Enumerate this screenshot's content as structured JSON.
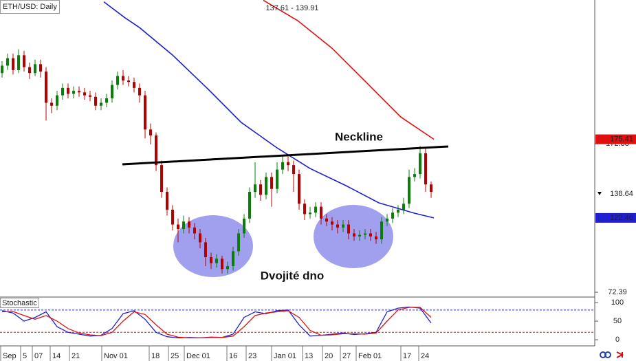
{
  "chart_data": [
    {
      "type": "candlestick",
      "title": "ETH/USD: Daily",
      "subtitle": "137.61 - 139.91",
      "xlim": [
        -0.75,
        215.5
      ],
      "ylim": [
        69.15,
        269.2
      ],
      "yticks": [
        72.39,
        172.33
      ],
      "up_color": "#0b7d0b",
      "down_color": "#b30000",
      "x": [
        0,
        2,
        4,
        6,
        8,
        10,
        12,
        14,
        16,
        18,
        20,
        22,
        24,
        26,
        28,
        30,
        32,
        34,
        36,
        38,
        40,
        42,
        44,
        46,
        48,
        50,
        52,
        54,
        56,
        58,
        60,
        62,
        64,
        66,
        68,
        70,
        72,
        74,
        76,
        78,
        80,
        82,
        84,
        86,
        88,
        90,
        92,
        94,
        96,
        98,
        100,
        102,
        104,
        106,
        108,
        110,
        112,
        114,
        116,
        118,
        120,
        122,
        124,
        126,
        128,
        130,
        132,
        134,
        136,
        138,
        140,
        142,
        144,
        146,
        148,
        150,
        152,
        154,
        156
      ],
      "ohlc": [
        [
          220,
          228,
          217,
          225
        ],
        [
          225,
          233,
          222,
          230
        ],
        [
          230,
          233,
          219,
          222
        ],
        [
          222,
          236,
          220,
          232
        ],
        [
          232,
          235,
          221,
          224
        ],
        [
          224,
          227,
          216,
          220
        ],
        [
          220,
          229,
          218,
          226
        ],
        [
          226,
          229,
          217,
          221
        ],
        [
          221,
          224,
          188,
          200
        ],
        [
          200,
          203,
          193,
          198
        ],
        [
          198,
          208,
          195,
          205
        ],
        [
          205,
          213,
          202,
          210
        ],
        [
          210,
          213,
          203,
          206
        ],
        [
          206,
          211,
          203,
          208
        ],
        [
          208,
          211,
          204,
          207
        ],
        [
          207,
          210,
          202,
          205
        ],
        [
          205,
          208,
          201,
          204
        ],
        [
          204,
          207,
          195,
          198
        ],
        [
          198,
          203,
          195,
          200
        ],
        [
          200,
          206,
          197,
          203
        ],
        [
          203,
          215,
          200,
          212
        ],
        [
          212,
          221,
          209,
          218
        ],
        [
          218,
          222,
          212,
          215
        ],
        [
          215,
          218,
          211,
          214
        ],
        [
          214,
          217,
          207,
          210
        ],
        [
          210,
          213,
          200,
          205
        ],
        [
          205,
          208,
          176,
          182
        ],
        [
          182,
          186,
          172,
          178
        ],
        [
          178,
          180,
          154,
          158
        ],
        [
          158,
          161,
          136,
          140
        ],
        [
          140,
          143,
          124,
          128
        ],
        [
          128,
          131,
          114,
          118
        ],
        [
          118,
          122,
          106,
          115
        ],
        [
          115,
          124,
          112,
          120
        ],
        [
          120,
          123,
          112,
          116
        ],
        [
          116,
          119,
          108,
          112
        ],
        [
          112,
          115,
          102,
          106
        ],
        [
          106,
          109,
          90,
          96
        ],
        [
          96,
          99,
          88,
          92
        ],
        [
          92,
          98,
          89,
          95
        ],
        [
          95,
          97,
          85,
          88
        ],
        [
          88,
          93,
          85,
          90
        ],
        [
          90,
          103,
          87,
          100
        ],
        [
          100,
          115,
          97,
          112
        ],
        [
          112,
          125,
          109,
          122
        ],
        [
          122,
          143,
          119,
          140
        ],
        [
          140,
          160,
          136,
          145
        ],
        [
          145,
          148,
          134,
          138
        ],
        [
          138,
          153,
          135,
          150
        ],
        [
          150,
          153,
          130,
          142
        ],
        [
          142,
          160,
          139,
          155
        ],
        [
          155,
          164,
          152,
          160
        ],
        [
          160,
          164,
          154,
          158
        ],
        [
          158,
          161,
          140,
          152
        ],
        [
          152,
          155,
          128,
          132
        ],
        [
          132,
          135,
          121,
          125
        ],
        [
          125,
          130,
          122,
          126
        ],
        [
          126,
          133,
          123,
          130
        ],
        [
          130,
          133,
          118,
          122
        ],
        [
          122,
          125,
          117,
          120
        ],
        [
          120,
          123,
          114,
          118
        ],
        [
          118,
          121,
          112,
          116
        ],
        [
          116,
          121,
          113,
          118
        ],
        [
          118,
          121,
          108,
          112
        ],
        [
          112,
          115,
          107,
          110
        ],
        [
          110,
          114,
          107,
          111
        ],
        [
          111,
          115,
          108,
          112
        ],
        [
          112,
          115,
          107,
          110
        ],
        [
          110,
          113,
          105,
          108
        ],
        [
          108,
          123,
          105,
          120
        ],
        [
          120,
          125,
          117,
          122
        ],
        [
          122,
          129,
          119,
          126
        ],
        [
          126,
          131,
          123,
          128
        ],
        [
          128,
          136,
          125,
          132
        ],
        [
          132,
          155,
          129,
          150
        ],
        [
          150,
          156,
          147,
          152
        ],
        [
          152,
          171,
          149,
          166
        ],
        [
          166,
          170,
          140,
          145
        ],
        [
          145,
          147,
          136,
          140
        ]
      ],
      "lines": [
        {
          "color": "#1f1fcf",
          "x": [
            37,
            44.5,
            50,
            62,
            75,
            87,
            100,
            112,
            125,
            137,
            150,
            157
          ],
          "values": [
            268,
            257.5,
            250.6,
            232.1,
            209,
            186.7,
            169.6,
            155.7,
            144.2,
            132.6,
            125.6,
            122.46
          ]
        },
        {
          "color": "#e01010",
          "x": [
            95,
            107.5,
            120,
            132.5,
            145,
            157
          ],
          "values": [
            269,
            255.3,
            236.7,
            213.6,
            190.4,
            175.41
          ]
        }
      ],
      "price_tags": [
        {
          "value": 175.41,
          "color": "#e01010",
          "filled": true
        },
        {
          "value": 138.64,
          "color": "#000000",
          "filled": false
        },
        {
          "value": 122.46,
          "color": "#1f1fcf",
          "filled": true
        }
      ],
      "annotations": [
        "Neckline",
        "Dvojité dno"
      ]
    },
    {
      "type": "line",
      "title": "Stochastic",
      "xlim": [
        -0.75,
        215.5
      ],
      "ylim": [
        -11,
        113
      ],
      "yticks": [
        0,
        50,
        100
      ],
      "xticks": [
        {
          "value": -0.5,
          "label": "Sep"
        },
        {
          "value": 6.75,
          "label": "5"
        },
        {
          "value": 11,
          "label": "07"
        },
        {
          "value": 17.5,
          "label": "14"
        },
        {
          "value": 24.5,
          "label": "21"
        },
        {
          "value": 36.25,
          "label": "Nov 01"
        },
        {
          "value": 53.5,
          "label": "18"
        },
        {
          "value": 60.5,
          "label": "25"
        },
        {
          "value": 66.25,
          "label": "Dec 01"
        },
        {
          "value": 81.75,
          "label": "16"
        },
        {
          "value": 88.75,
          "label": "23"
        },
        {
          "value": 98,
          "label": "Jan 01"
        },
        {
          "value": 109.25,
          "label": "13"
        },
        {
          "value": 116.5,
          "label": "20"
        },
        {
          "value": 123,
          "label": "27"
        },
        {
          "value": 128.75,
          "label": "Feb 01"
        },
        {
          "value": 145,
          "label": "17"
        },
        {
          "value": 151.5,
          "label": "24"
        }
      ],
      "levels": [
        {
          "value": 80,
          "color": "#2a2acf"
        },
        {
          "value": 20,
          "color": "#e01010"
        }
      ],
      "x": [
        0,
        4,
        8,
        12,
        16,
        20,
        24,
        28,
        32,
        36,
        40,
        44,
        48,
        52,
        56,
        60,
        64,
        68,
        72,
        76,
        80,
        84,
        88,
        92,
        96,
        100,
        104,
        108,
        112,
        116,
        120,
        124,
        128,
        132,
        136,
        140,
        144,
        148,
        152,
        156
      ],
      "series": [
        {
          "color": "#1f1fcf",
          "values": [
            78,
            72,
            50,
            60,
            75,
            35,
            20,
            15,
            10,
            12,
            30,
            70,
            78,
            55,
            20,
            8,
            5,
            6,
            5,
            7,
            6,
            15,
            60,
            75,
            70,
            78,
            80,
            40,
            10,
            12,
            15,
            18,
            14,
            16,
            20,
            75,
            85,
            88,
            85,
            45
          ]
        },
        {
          "color": "#e01010",
          "values": [
            75,
            76,
            65,
            55,
            65,
            50,
            30,
            18,
            13,
            11,
            20,
            50,
            75,
            68,
            40,
            15,
            7,
            5,
            5,
            6,
            6,
            10,
            35,
            65,
            72,
            75,
            78,
            60,
            25,
            12,
            13,
            16,
            16,
            15,
            18,
            50,
            80,
            87,
            87,
            60
          ]
        }
      ]
    }
  ]
}
